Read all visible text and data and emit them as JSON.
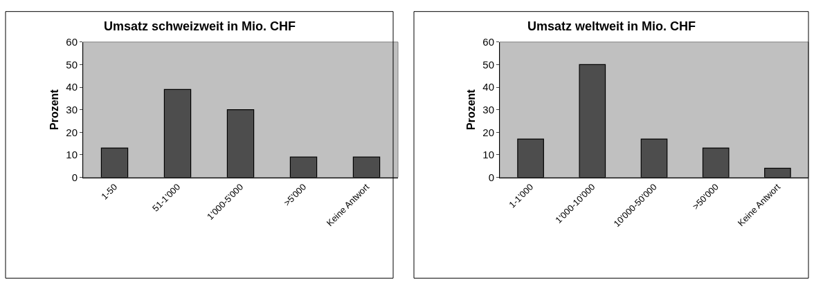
{
  "chart_data": [
    {
      "type": "bar",
      "title": "Umsatz schweizweit in Mio. CHF",
      "ylabel": "Prozent",
      "categories": [
        "1-50",
        "51-1'000",
        "1'000-5'000",
        ">5'000",
        "Keine Antwort"
      ],
      "values": [
        13,
        39,
        30,
        9,
        9
      ],
      "color": "#4d4d4d",
      "ylim": [
        0,
        60
      ],
      "yticks": [
        0,
        10,
        20,
        30,
        40,
        50,
        60
      ],
      "grid": false
    },
    {
      "type": "bar",
      "title": "Umsatz weltweit in Mio. CHF",
      "ylabel": "Prozent",
      "categories": [
        "1-1'000",
        "1'000-10'000",
        "10'000-50'000",
        ">50'000",
        "Keine Antwort"
      ],
      "values": [
        17,
        50,
        17,
        13,
        4
      ],
      "color": "#4d4d4d",
      "ylim": [
        0,
        60
      ],
      "yticks": [
        0,
        10,
        20,
        30,
        40,
        50,
        60
      ],
      "grid": false
    }
  ]
}
